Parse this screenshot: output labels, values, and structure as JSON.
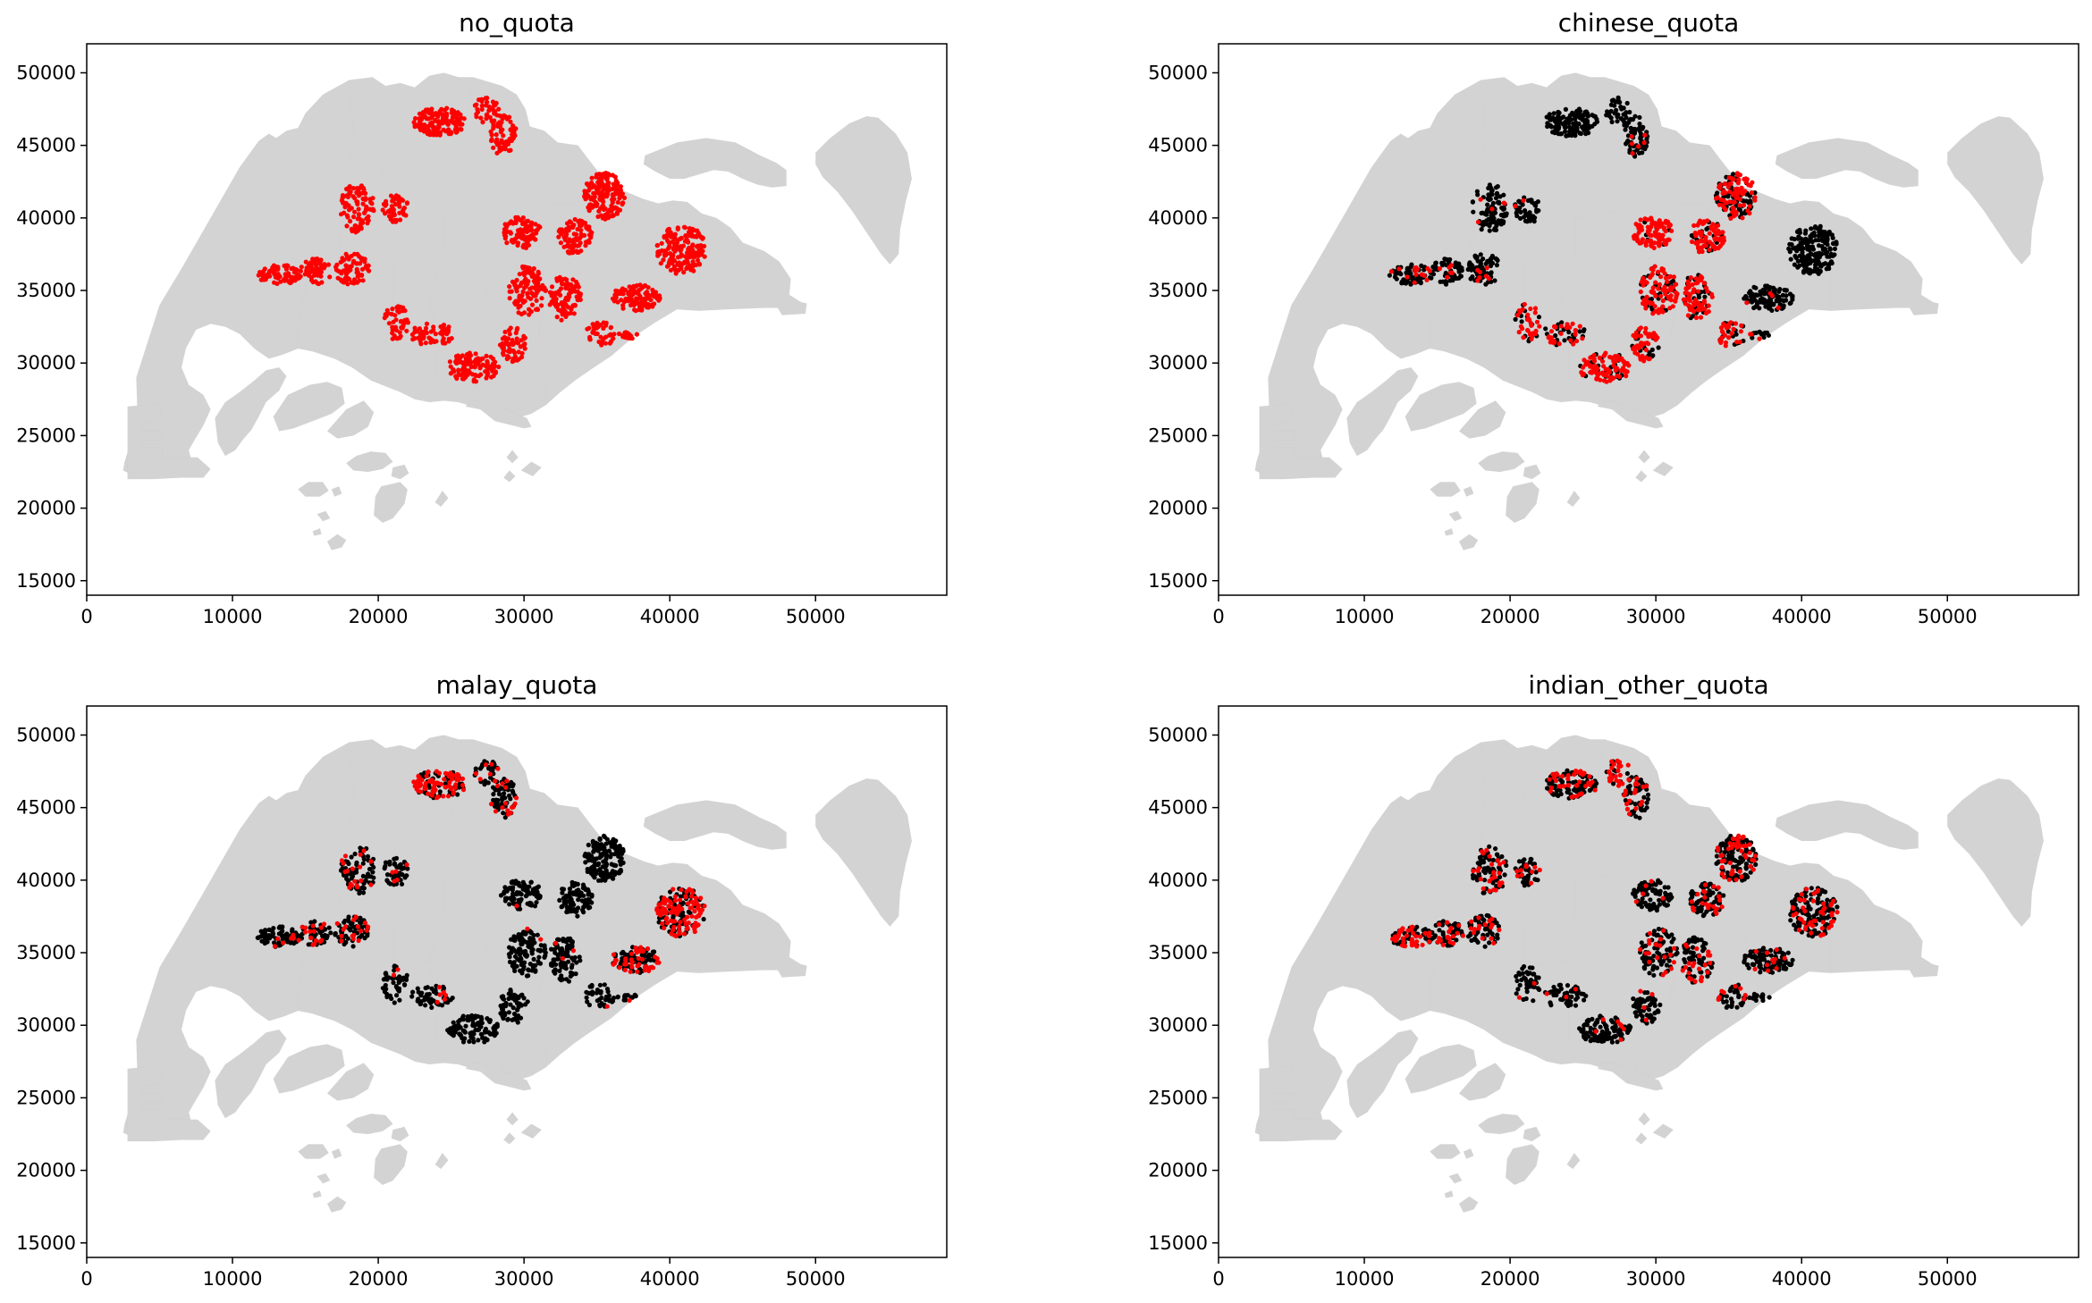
{
  "figure": {
    "xlim": [
      0,
      59000
    ],
    "ylim": [
      14000,
      52000
    ],
    "xticks": [
      0,
      10000,
      20000,
      30000,
      40000,
      50000
    ],
    "yticks": [
      15000,
      20000,
      25000,
      30000,
      35000,
      40000,
      45000,
      50000
    ],
    "land_color": "#d3d3d3",
    "land_edge_color": "#808080",
    "highlight_color": "#ff0000",
    "base_color": "#000000"
  },
  "chart_data": [
    {
      "type": "map",
      "title": "no_quota",
      "xlim": [
        0,
        59000
      ],
      "ylim": [
        14000,
        52000
      ],
      "clusters": [
        {
          "x": 24200,
          "y": 46600,
          "rx": 1800,
          "ry": 1000,
          "n": 130,
          "red": 1.0
        },
        {
          "x": 27400,
          "y": 47400,
          "rx": 900,
          "ry": 900,
          "n": 35,
          "red": 1.0
        },
        {
          "x": 28600,
          "y": 45700,
          "rx": 900,
          "ry": 1500,
          "n": 70,
          "red": 1.0
        },
        {
          "x": 18600,
          "y": 40700,
          "rx": 1200,
          "ry": 1700,
          "n": 90,
          "red": 1.0
        },
        {
          "x": 21200,
          "y": 40600,
          "rx": 900,
          "ry": 1000,
          "n": 50,
          "red": 1.0
        },
        {
          "x": 13200,
          "y": 36100,
          "rx": 1500,
          "ry": 700,
          "n": 80,
          "red": 1.0
        },
        {
          "x": 15700,
          "y": 36300,
          "rx": 1100,
          "ry": 900,
          "n": 60,
          "red": 1.0
        },
        {
          "x": 18200,
          "y": 36500,
          "rx": 1200,
          "ry": 1100,
          "n": 70,
          "red": 1.0
        },
        {
          "x": 21200,
          "y": 32800,
          "rx": 900,
          "ry": 1300,
          "n": 45,
          "red": 1.0
        },
        {
          "x": 23700,
          "y": 32000,
          "rx": 1500,
          "ry": 800,
          "n": 55,
          "red": 1.0
        },
        {
          "x": 26500,
          "y": 29700,
          "rx": 1800,
          "ry": 1000,
          "n": 110,
          "red": 1.0
        },
        {
          "x": 29800,
          "y": 39000,
          "rx": 1400,
          "ry": 1100,
          "n": 90,
          "red": 1.0
        },
        {
          "x": 30200,
          "y": 35000,
          "rx": 1300,
          "ry": 1700,
          "n": 110,
          "red": 1.0
        },
        {
          "x": 29300,
          "y": 31300,
          "rx": 1000,
          "ry": 1200,
          "n": 60,
          "red": 1.0
        },
        {
          "x": 35500,
          "y": 41500,
          "rx": 1400,
          "ry": 1600,
          "n": 160,
          "red": 1.0
        },
        {
          "x": 33500,
          "y": 38700,
          "rx": 1200,
          "ry": 1200,
          "n": 90,
          "red": 1.0
        },
        {
          "x": 32800,
          "y": 34500,
          "rx": 1100,
          "ry": 1600,
          "n": 90,
          "red": 1.0
        },
        {
          "x": 37700,
          "y": 34500,
          "rx": 1700,
          "ry": 900,
          "n": 110,
          "red": 1.0
        },
        {
          "x": 40800,
          "y": 37800,
          "rx": 1700,
          "ry": 1700,
          "n": 180,
          "red": 1.0
        },
        {
          "x": 35200,
          "y": 32000,
          "rx": 1000,
          "ry": 900,
          "n": 40,
          "red": 1.0
        },
        {
          "x": 37100,
          "y": 31900,
          "rx": 700,
          "ry": 300,
          "n": 15,
          "red": 1.0
        }
      ]
    },
    {
      "type": "map",
      "title": "chinese_quota",
      "xlim": [
        0,
        59000
      ],
      "ylim": [
        14000,
        52000
      ],
      "clusters": [
        {
          "x": 24200,
          "y": 46600,
          "rx": 1800,
          "ry": 1000,
          "n": 130,
          "red": 0.0
        },
        {
          "x": 27400,
          "y": 47400,
          "rx": 900,
          "ry": 900,
          "n": 35,
          "red": 0.0
        },
        {
          "x": 28600,
          "y": 45700,
          "rx": 900,
          "ry": 1500,
          "n": 70,
          "red": 0.05
        },
        {
          "x": 18600,
          "y": 40700,
          "rx": 1200,
          "ry": 1700,
          "n": 90,
          "red": 0.05
        },
        {
          "x": 21200,
          "y": 40600,
          "rx": 900,
          "ry": 1000,
          "n": 50,
          "red": 0.05
        },
        {
          "x": 13200,
          "y": 36100,
          "rx": 1500,
          "ry": 700,
          "n": 80,
          "red": 0.15
        },
        {
          "x": 15700,
          "y": 36300,
          "rx": 1100,
          "ry": 900,
          "n": 60,
          "red": 0.1
        },
        {
          "x": 18200,
          "y": 36500,
          "rx": 1200,
          "ry": 1100,
          "n": 70,
          "red": 0.1
        },
        {
          "x": 21200,
          "y": 32800,
          "rx": 900,
          "ry": 1300,
          "n": 45,
          "red": 0.6
        },
        {
          "x": 23700,
          "y": 32000,
          "rx": 1500,
          "ry": 800,
          "n": 55,
          "red": 0.6
        },
        {
          "x": 26500,
          "y": 29700,
          "rx": 1800,
          "ry": 1000,
          "n": 110,
          "red": 0.75
        },
        {
          "x": 29800,
          "y": 39000,
          "rx": 1400,
          "ry": 1100,
          "n": 90,
          "red": 0.85
        },
        {
          "x": 30200,
          "y": 35000,
          "rx": 1300,
          "ry": 1700,
          "n": 110,
          "red": 0.75
        },
        {
          "x": 29300,
          "y": 31300,
          "rx": 1000,
          "ry": 1200,
          "n": 60,
          "red": 0.7
        },
        {
          "x": 35500,
          "y": 41500,
          "rx": 1400,
          "ry": 1600,
          "n": 160,
          "red": 0.45
        },
        {
          "x": 33500,
          "y": 38700,
          "rx": 1200,
          "ry": 1200,
          "n": 90,
          "red": 0.8
        },
        {
          "x": 32800,
          "y": 34500,
          "rx": 1100,
          "ry": 1600,
          "n": 90,
          "red": 0.8
        },
        {
          "x": 37700,
          "y": 34500,
          "rx": 1700,
          "ry": 900,
          "n": 110,
          "red": 0.05
        },
        {
          "x": 40800,
          "y": 37800,
          "rx": 1700,
          "ry": 1700,
          "n": 180,
          "red": 0.0
        },
        {
          "x": 35200,
          "y": 32000,
          "rx": 1000,
          "ry": 900,
          "n": 40,
          "red": 0.6
        },
        {
          "x": 37100,
          "y": 31900,
          "rx": 700,
          "ry": 300,
          "n": 15,
          "red": 0.3
        }
      ]
    },
    {
      "type": "map",
      "title": "malay_quota",
      "xlim": [
        0,
        59000
      ],
      "ylim": [
        14000,
        52000
      ],
      "clusters": [
        {
          "x": 24200,
          "y": 46600,
          "rx": 1800,
          "ry": 1000,
          "n": 130,
          "red": 0.55
        },
        {
          "x": 27400,
          "y": 47400,
          "rx": 900,
          "ry": 900,
          "n": 35,
          "red": 0.1
        },
        {
          "x": 28600,
          "y": 45700,
          "rx": 900,
          "ry": 1500,
          "n": 70,
          "red": 0.25
        },
        {
          "x": 18600,
          "y": 40700,
          "rx": 1200,
          "ry": 1700,
          "n": 90,
          "red": 0.2
        },
        {
          "x": 21200,
          "y": 40600,
          "rx": 900,
          "ry": 1000,
          "n": 50,
          "red": 0.1
        },
        {
          "x": 13200,
          "y": 36100,
          "rx": 1500,
          "ry": 700,
          "n": 80,
          "red": 0.15
        },
        {
          "x": 15700,
          "y": 36300,
          "rx": 1100,
          "ry": 900,
          "n": 60,
          "red": 0.25
        },
        {
          "x": 18200,
          "y": 36500,
          "rx": 1200,
          "ry": 1100,
          "n": 70,
          "red": 0.2
        },
        {
          "x": 21200,
          "y": 32800,
          "rx": 900,
          "ry": 1300,
          "n": 45,
          "red": 0.05
        },
        {
          "x": 23700,
          "y": 32000,
          "rx": 1500,
          "ry": 800,
          "n": 55,
          "red": 0.05
        },
        {
          "x": 26500,
          "y": 29700,
          "rx": 1800,
          "ry": 1000,
          "n": 110,
          "red": 0.02
        },
        {
          "x": 29800,
          "y": 39000,
          "rx": 1400,
          "ry": 1100,
          "n": 90,
          "red": 0.02
        },
        {
          "x": 30200,
          "y": 35000,
          "rx": 1300,
          "ry": 1700,
          "n": 110,
          "red": 0.02
        },
        {
          "x": 29300,
          "y": 31300,
          "rx": 1000,
          "ry": 1200,
          "n": 60,
          "red": 0.02
        },
        {
          "x": 35500,
          "y": 41500,
          "rx": 1400,
          "ry": 1600,
          "n": 160,
          "red": 0.0
        },
        {
          "x": 33500,
          "y": 38700,
          "rx": 1200,
          "ry": 1200,
          "n": 90,
          "red": 0.02
        },
        {
          "x": 32800,
          "y": 34500,
          "rx": 1100,
          "ry": 1600,
          "n": 90,
          "red": 0.02
        },
        {
          "x": 37700,
          "y": 34500,
          "rx": 1700,
          "ry": 900,
          "n": 110,
          "red": 0.35
        },
        {
          "x": 40800,
          "y": 37800,
          "rx": 1700,
          "ry": 1700,
          "n": 180,
          "red": 0.55
        },
        {
          "x": 35200,
          "y": 32000,
          "rx": 1000,
          "ry": 900,
          "n": 40,
          "red": 0.05
        },
        {
          "x": 37100,
          "y": 31900,
          "rx": 700,
          "ry": 300,
          "n": 15,
          "red": 0.1
        }
      ]
    },
    {
      "type": "map",
      "title": "indian_other_quota",
      "xlim": [
        0,
        59000
      ],
      "ylim": [
        14000,
        52000
      ],
      "clusters": [
        {
          "x": 24200,
          "y": 46600,
          "rx": 1800,
          "ry": 1000,
          "n": 130,
          "red": 0.25
        },
        {
          "x": 27400,
          "y": 47400,
          "rx": 900,
          "ry": 900,
          "n": 35,
          "red": 0.7
        },
        {
          "x": 28600,
          "y": 45700,
          "rx": 900,
          "ry": 1500,
          "n": 70,
          "red": 0.3
        },
        {
          "x": 18600,
          "y": 40700,
          "rx": 1200,
          "ry": 1700,
          "n": 90,
          "red": 0.3
        },
        {
          "x": 21200,
          "y": 40600,
          "rx": 900,
          "ry": 1000,
          "n": 50,
          "red": 0.2
        },
        {
          "x": 13200,
          "y": 36100,
          "rx": 1500,
          "ry": 700,
          "n": 80,
          "red": 0.5
        },
        {
          "x": 15700,
          "y": 36300,
          "rx": 1100,
          "ry": 900,
          "n": 60,
          "red": 0.3
        },
        {
          "x": 18200,
          "y": 36500,
          "rx": 1200,
          "ry": 1100,
          "n": 70,
          "red": 0.3
        },
        {
          "x": 21200,
          "y": 32800,
          "rx": 900,
          "ry": 1300,
          "n": 45,
          "red": 0.05
        },
        {
          "x": 23700,
          "y": 32000,
          "rx": 1500,
          "ry": 800,
          "n": 55,
          "red": 0.05
        },
        {
          "x": 26500,
          "y": 29700,
          "rx": 1800,
          "ry": 1000,
          "n": 110,
          "red": 0.05
        },
        {
          "x": 29800,
          "y": 39000,
          "rx": 1400,
          "ry": 1100,
          "n": 90,
          "red": 0.05
        },
        {
          "x": 30200,
          "y": 35000,
          "rx": 1300,
          "ry": 1700,
          "n": 110,
          "red": 0.1
        },
        {
          "x": 29300,
          "y": 31300,
          "rx": 1000,
          "ry": 1200,
          "n": 60,
          "red": 0.05
        },
        {
          "x": 35500,
          "y": 41500,
          "rx": 1400,
          "ry": 1600,
          "n": 160,
          "red": 0.25
        },
        {
          "x": 33500,
          "y": 38700,
          "rx": 1200,
          "ry": 1200,
          "n": 90,
          "red": 0.2
        },
        {
          "x": 32800,
          "y": 34500,
          "rx": 1100,
          "ry": 1600,
          "n": 90,
          "red": 0.25
        },
        {
          "x": 37700,
          "y": 34500,
          "rx": 1700,
          "ry": 900,
          "n": 110,
          "red": 0.1
        },
        {
          "x": 40800,
          "y": 37800,
          "rx": 1700,
          "ry": 1700,
          "n": 180,
          "red": 0.3
        },
        {
          "x": 35200,
          "y": 32000,
          "rx": 1000,
          "ry": 900,
          "n": 40,
          "red": 0.2
        },
        {
          "x": 37100,
          "y": 31900,
          "rx": 700,
          "ry": 300,
          "n": 15,
          "red": 0.1
        }
      ]
    }
  ]
}
